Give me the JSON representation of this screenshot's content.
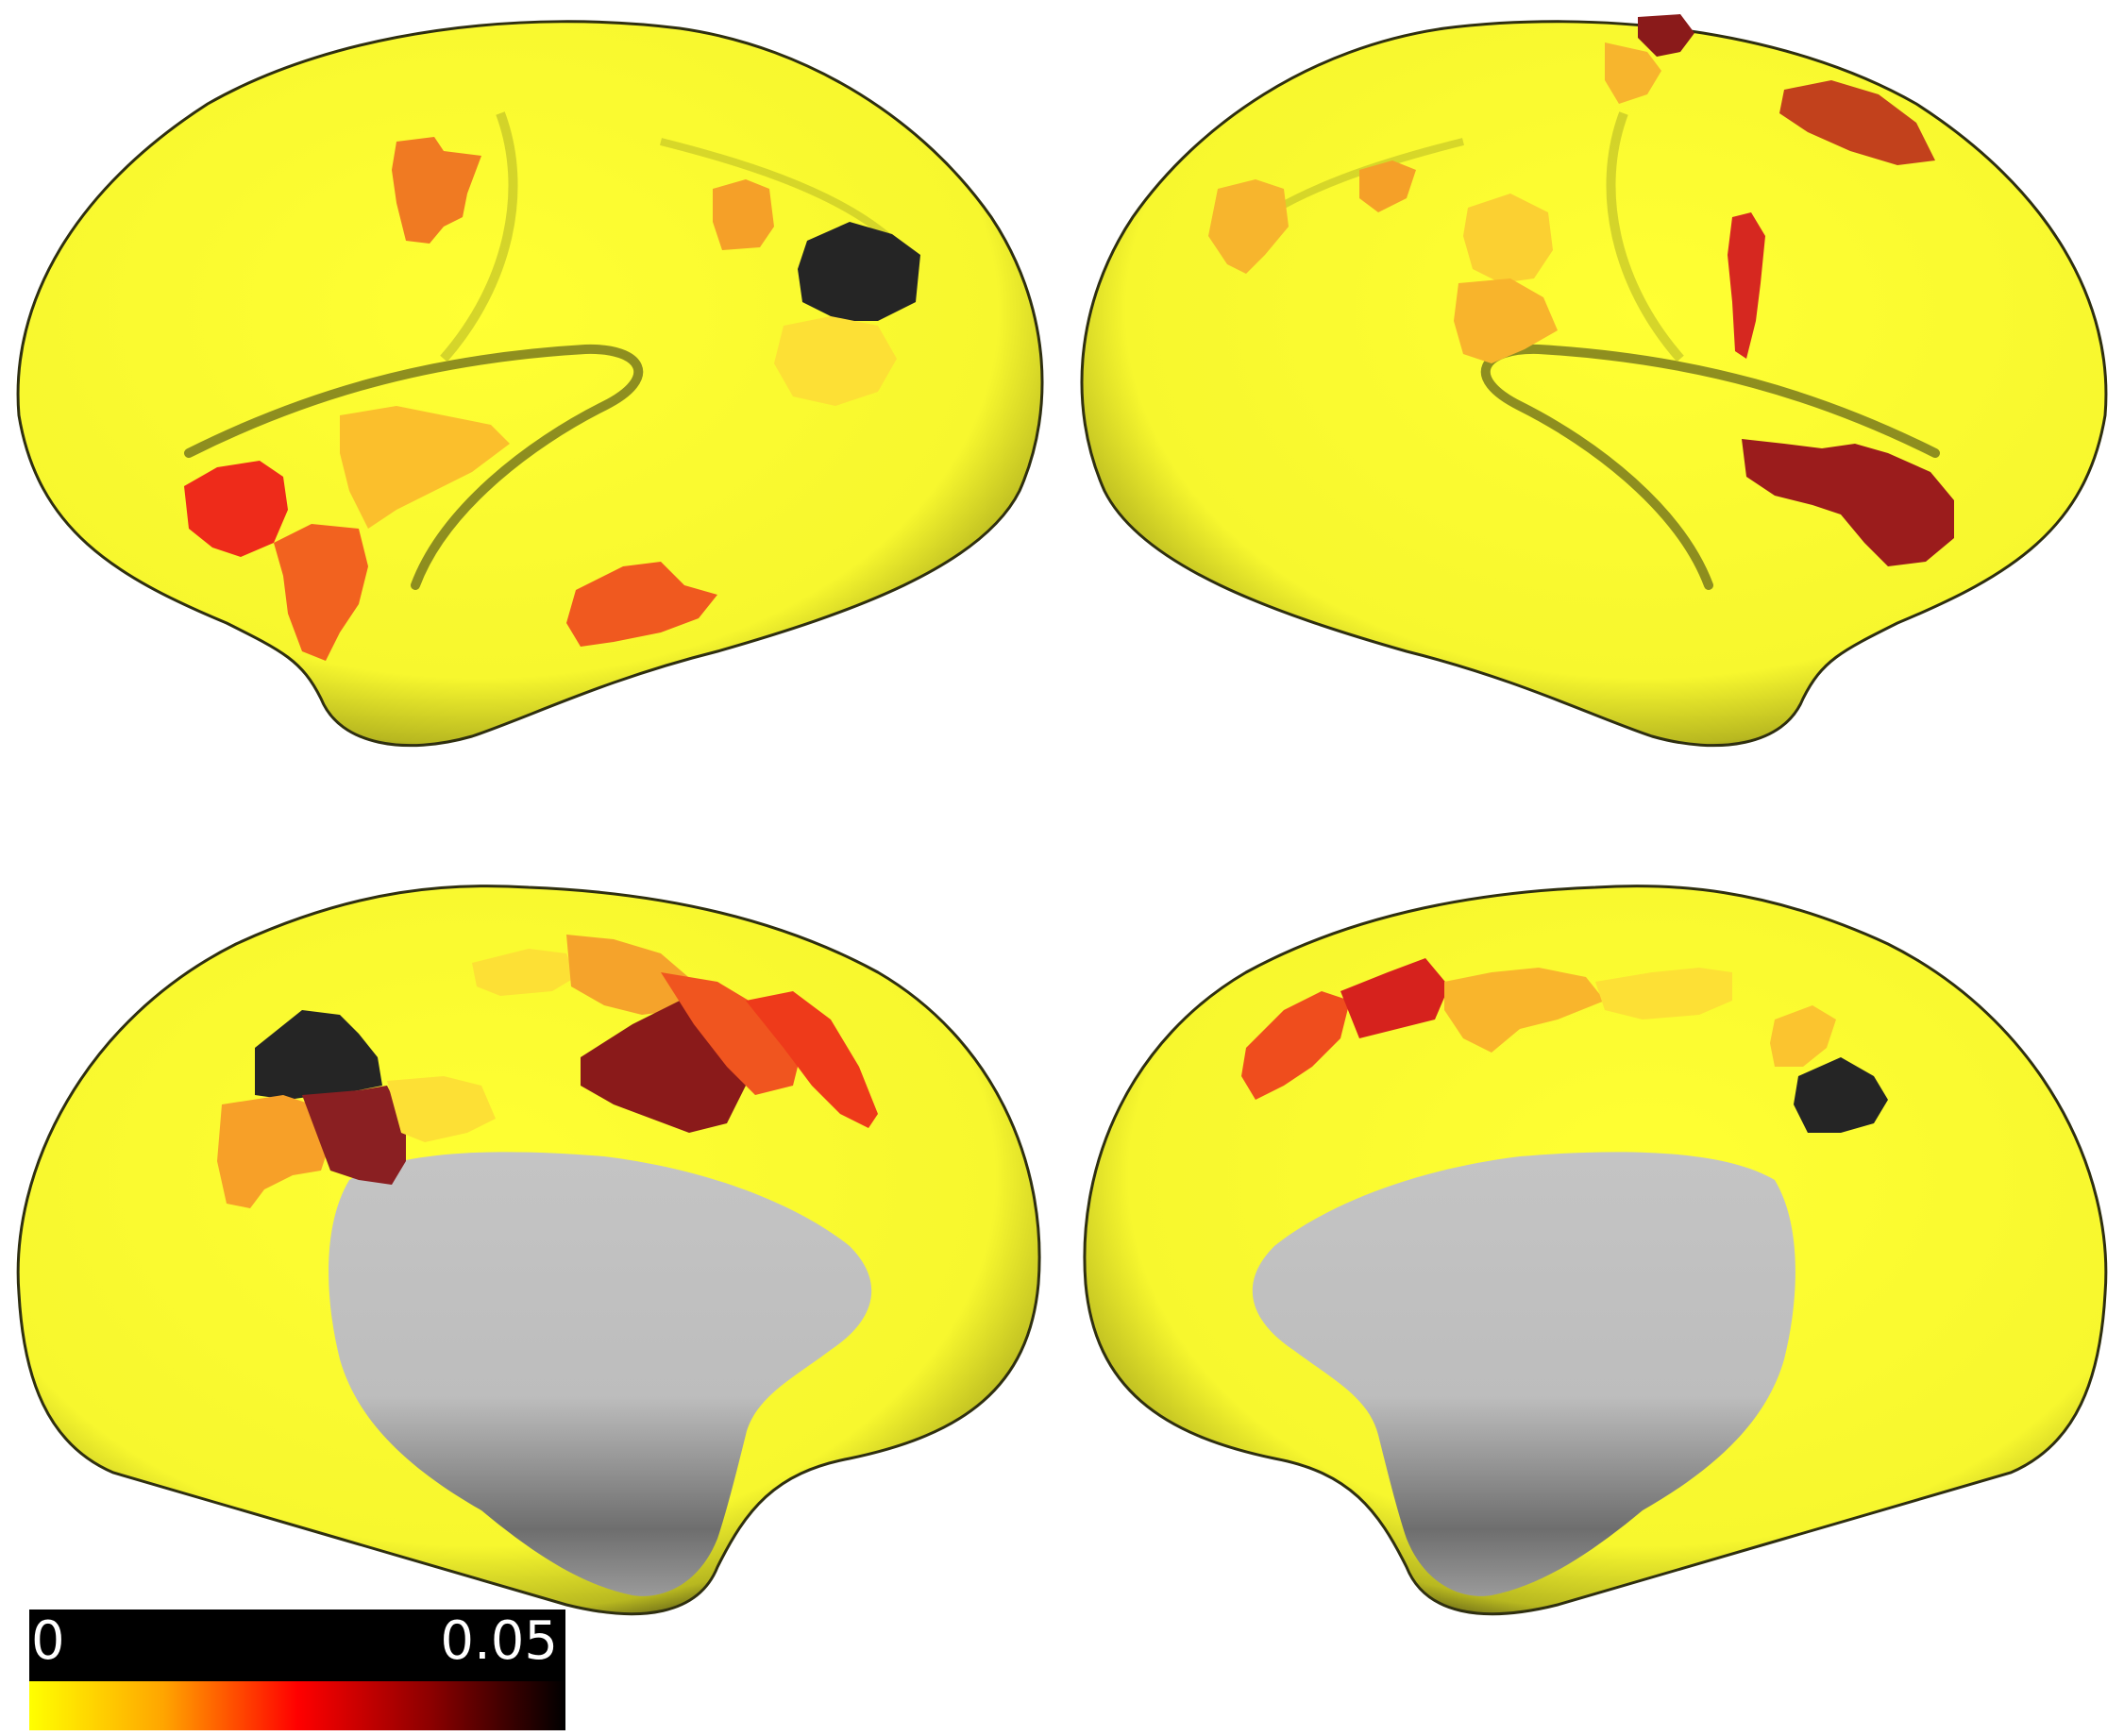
{
  "colors": {
    "background": "#ffffff",
    "cortex": "#ffff33",
    "medial_wall": "#c8c8c8",
    "scale": [
      "#ffff00",
      "#ffa500",
      "#ff0000",
      "#8b0000",
      "#000000"
    ],
    "region_orange": "#f07a22",
    "region_red": "#e8321b",
    "region_darkred": "#8a1a1a",
    "region_black": "#252525"
  },
  "views": [
    {
      "name": "left-lateral"
    },
    {
      "name": "right-lateral"
    },
    {
      "name": "left-medial"
    },
    {
      "name": "right-medial"
    }
  ],
  "colorbar": {
    "min_label": "0",
    "max_label": "0.05"
  }
}
